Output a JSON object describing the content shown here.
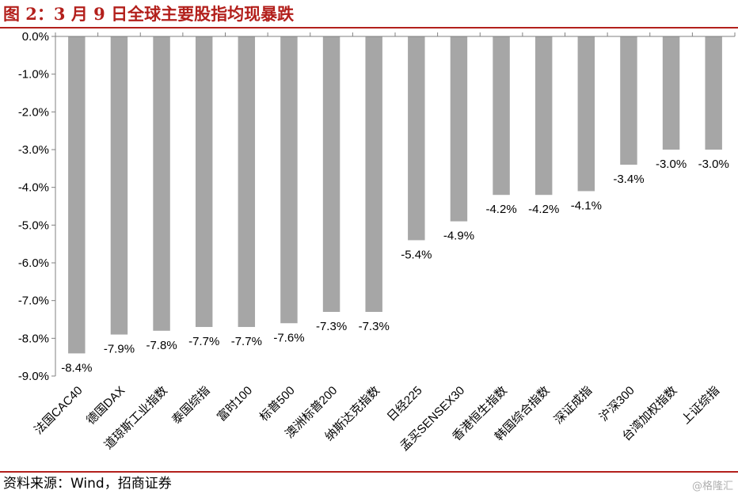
{
  "header": {
    "title": "图 2：3 月 9 日全球主要股指均现暴跌"
  },
  "footer": {
    "source": "资料来源：Wind，招商证券",
    "watermark": "@格隆汇"
  },
  "chart_data": {
    "type": "bar",
    "categories": [
      "法国CAC40",
      "德国DAX",
      "道琼斯工业指数",
      "泰国综指",
      "富时100",
      "标普500",
      "澳洲标普200",
      "纳斯达克指数",
      "日经225",
      "孟买SENSEX30",
      "香港恒生指数",
      "韩国综合指数",
      "深证成指",
      "沪深300",
      "台湾加权指数",
      "上证综指"
    ],
    "values": [
      -8.4,
      -7.9,
      -7.8,
      -7.7,
      -7.7,
      -7.6,
      -7.3,
      -7.3,
      -5.4,
      -4.9,
      -4.2,
      -4.2,
      -4.1,
      -3.4,
      -3.0,
      -3.0
    ],
    "data_labels": [
      "-8.4%",
      "-7.9%",
      "-7.8%",
      "-7.7%",
      "-7.7%",
      "-7.6%",
      "-7.3%",
      "-7.3%",
      "-5.4%",
      "-4.9%",
      "-4.2%",
      "-4.2%",
      "-4.1%",
      "-3.4%",
      "-3.0%",
      "-3.0%"
    ],
    "yticks": [
      0,
      -1,
      -2,
      -3,
      -4,
      -5,
      -6,
      -7,
      -8,
      -9
    ],
    "ytick_labels": [
      "0.0%",
      "-1.0%",
      "-2.0%",
      "-3.0%",
      "-4.0%",
      "-5.0%",
      "-6.0%",
      "-7.0%",
      "-8.0%",
      "-9.0%"
    ],
    "ylim": [
      -9,
      0
    ],
    "xlabel": "",
    "ylabel": "",
    "grid": false,
    "legend": "none",
    "bar_color": "#a6a6a6",
    "axis_color": "#808080"
  }
}
